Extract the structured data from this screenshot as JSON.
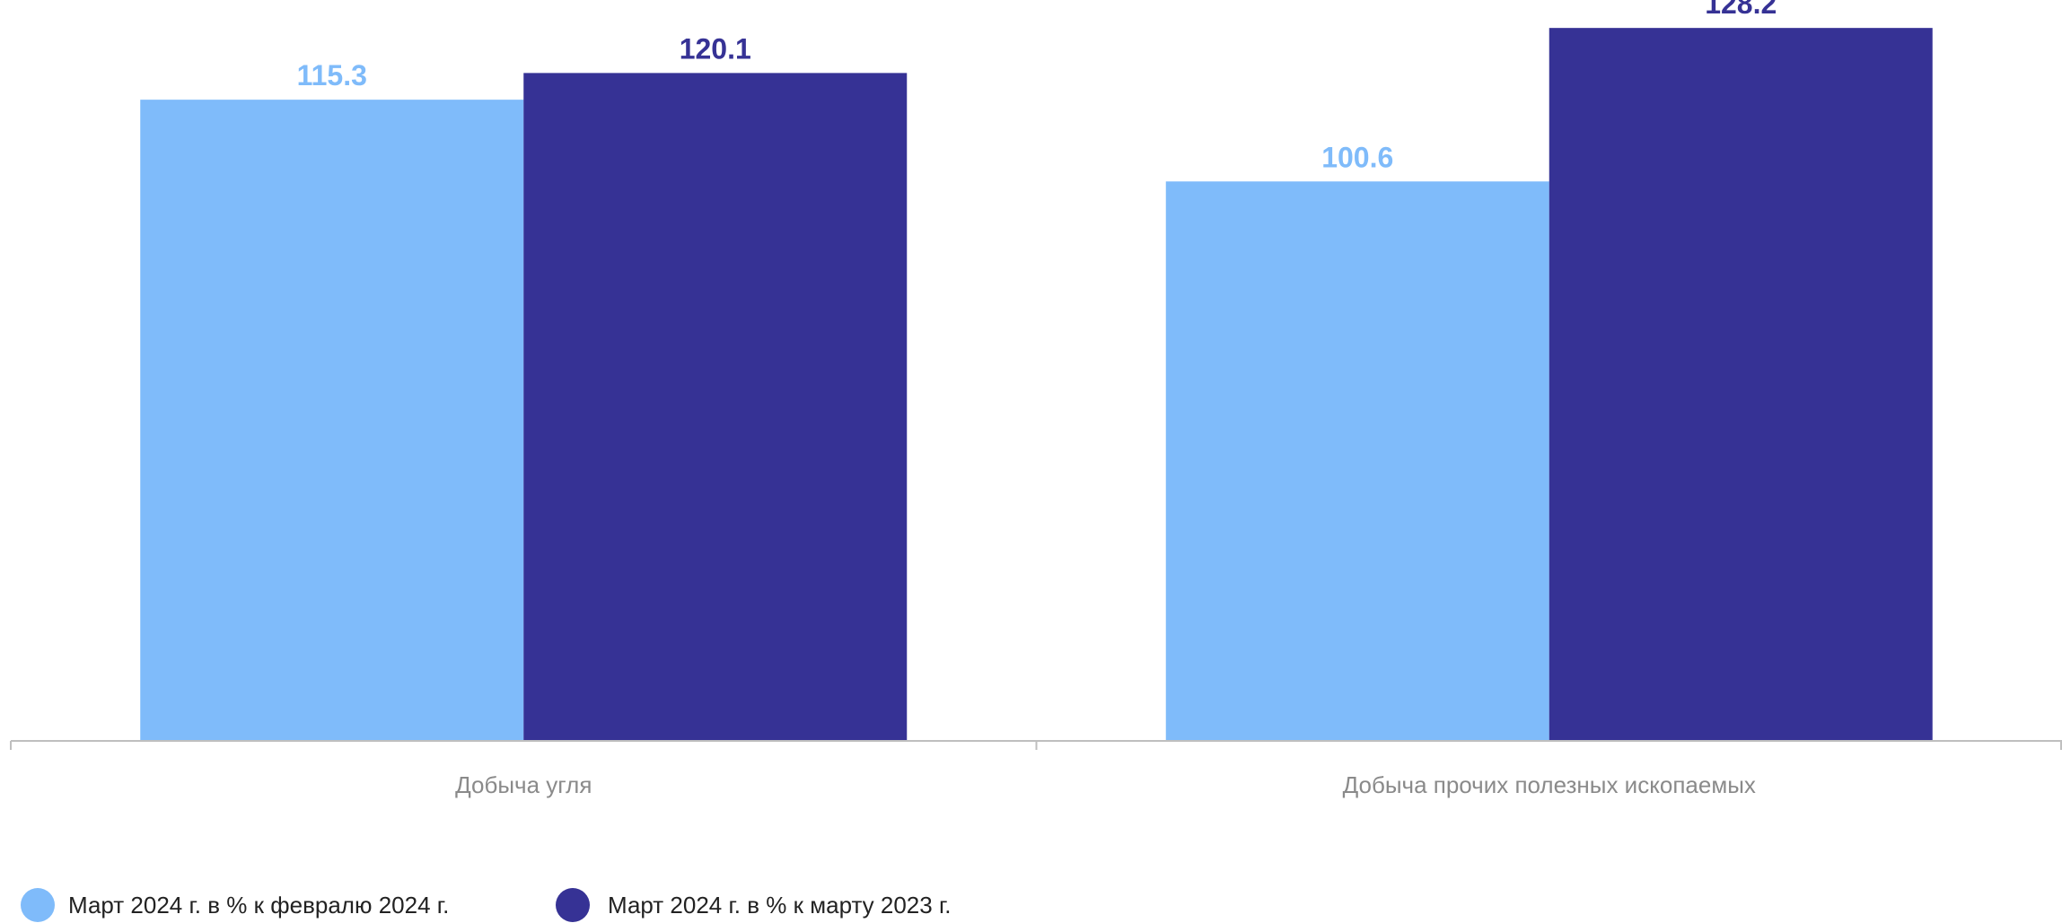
{
  "chart_data": {
    "type": "bar",
    "categories": [
      "Добыча угля",
      "Добыча прочих полезных ископаемых"
    ],
    "series": [
      {
        "name": "Март 2024 г. в % к февралю 2024 г.",
        "values": [
          115.3,
          100.6
        ],
        "color": "#7fbbfa"
      },
      {
        "name": "Март 2024 г. в % к марту 2023 г.",
        "values": [
          120.1,
          128.2
        ],
        "color": "#363295"
      }
    ],
    "ylim": [
      0,
      130
    ],
    "grid": false,
    "legend_position": "bottom-left",
    "axis_color": "#bfbfbf",
    "category_label_color": "#8a8a8a"
  }
}
